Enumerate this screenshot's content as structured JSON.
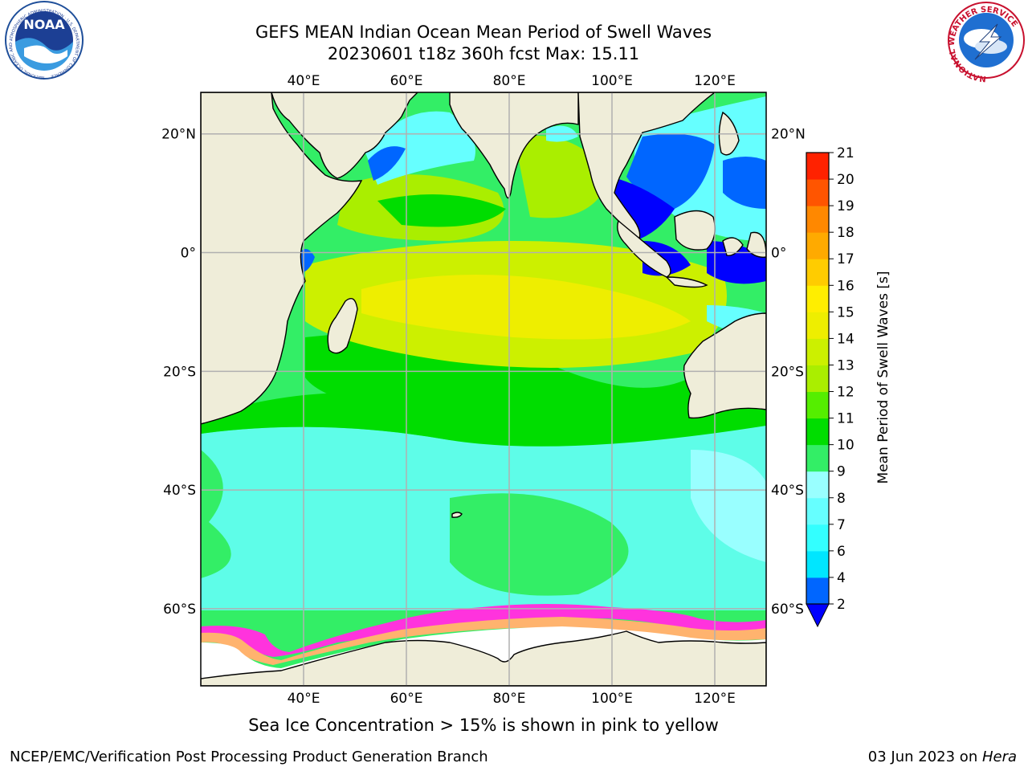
{
  "title": {
    "line1": "GEFS MEAN Indian Ocean Mean Period of Swell Waves",
    "line2": "20230601 t18z 360h fcst   Max: 15.11"
  },
  "map": {
    "lon_range": [
      20,
      130
    ],
    "lat_range": [
      -73,
      27
    ],
    "lon_ticks": [
      40,
      60,
      80,
      100,
      120
    ],
    "lon_tick_labels": [
      "40°E",
      "60°E",
      "80°E",
      "100°E",
      "120°E"
    ],
    "lat_ticks": [
      20,
      0,
      -20,
      -40,
      -60
    ],
    "lat_tick_labels": [
      "20°N",
      "0°",
      "20°S",
      "40°S",
      "60°S"
    ],
    "grid": true,
    "land_color": "#efedd9",
    "ice_edge_colors": [
      "#ff33dd",
      "#ffb36e",
      "#fff06e"
    ],
    "ice_color": "#ffffff"
  },
  "colorbar": {
    "label": "Mean Period of Swell Waves [s]",
    "levels": [
      2,
      4,
      6,
      7,
      8,
      9,
      10,
      11,
      12,
      13,
      14,
      15,
      16,
      17,
      18,
      19,
      20,
      21
    ],
    "tick_labels": [
      "2",
      "4",
      "6",
      "7",
      "8",
      "9",
      "10",
      "11",
      "12",
      "13",
      "14",
      "15",
      "16",
      "17",
      "18",
      "19",
      "20",
      "21"
    ],
    "colors": [
      "#0066ff",
      "#00e6ff",
      "#33ffff",
      "#66ffff",
      "#99ffff",
      "#33ee66",
      "#00dd00",
      "#55ee00",
      "#aaee00",
      "#ccf000",
      "#eeee00",
      "#ffee00",
      "#ffcc00",
      "#ffaa00",
      "#ff8800",
      "#ff5500",
      "#ff2200"
    ],
    "under_color": "#0000ff",
    "extend": "min"
  },
  "note": "Sea Ice Concentration > 15% is shown in pink to yellow",
  "footer": {
    "left": "NCEP/EMC/Verification Post Processing Product Generation Branch",
    "right_prefix": "03 Jun 2023 on ",
    "right_machine": "Hera"
  },
  "logos": {
    "left_text": "NOAA",
    "left_ring_text": "NATIONAL OCEANIC AND ATMOSPHERIC ADMINISTRATION · U.S. DEPARTMENT OF COMMERCE",
    "right_ring_text": "NATIONAL WEATHER SERVICE"
  }
}
